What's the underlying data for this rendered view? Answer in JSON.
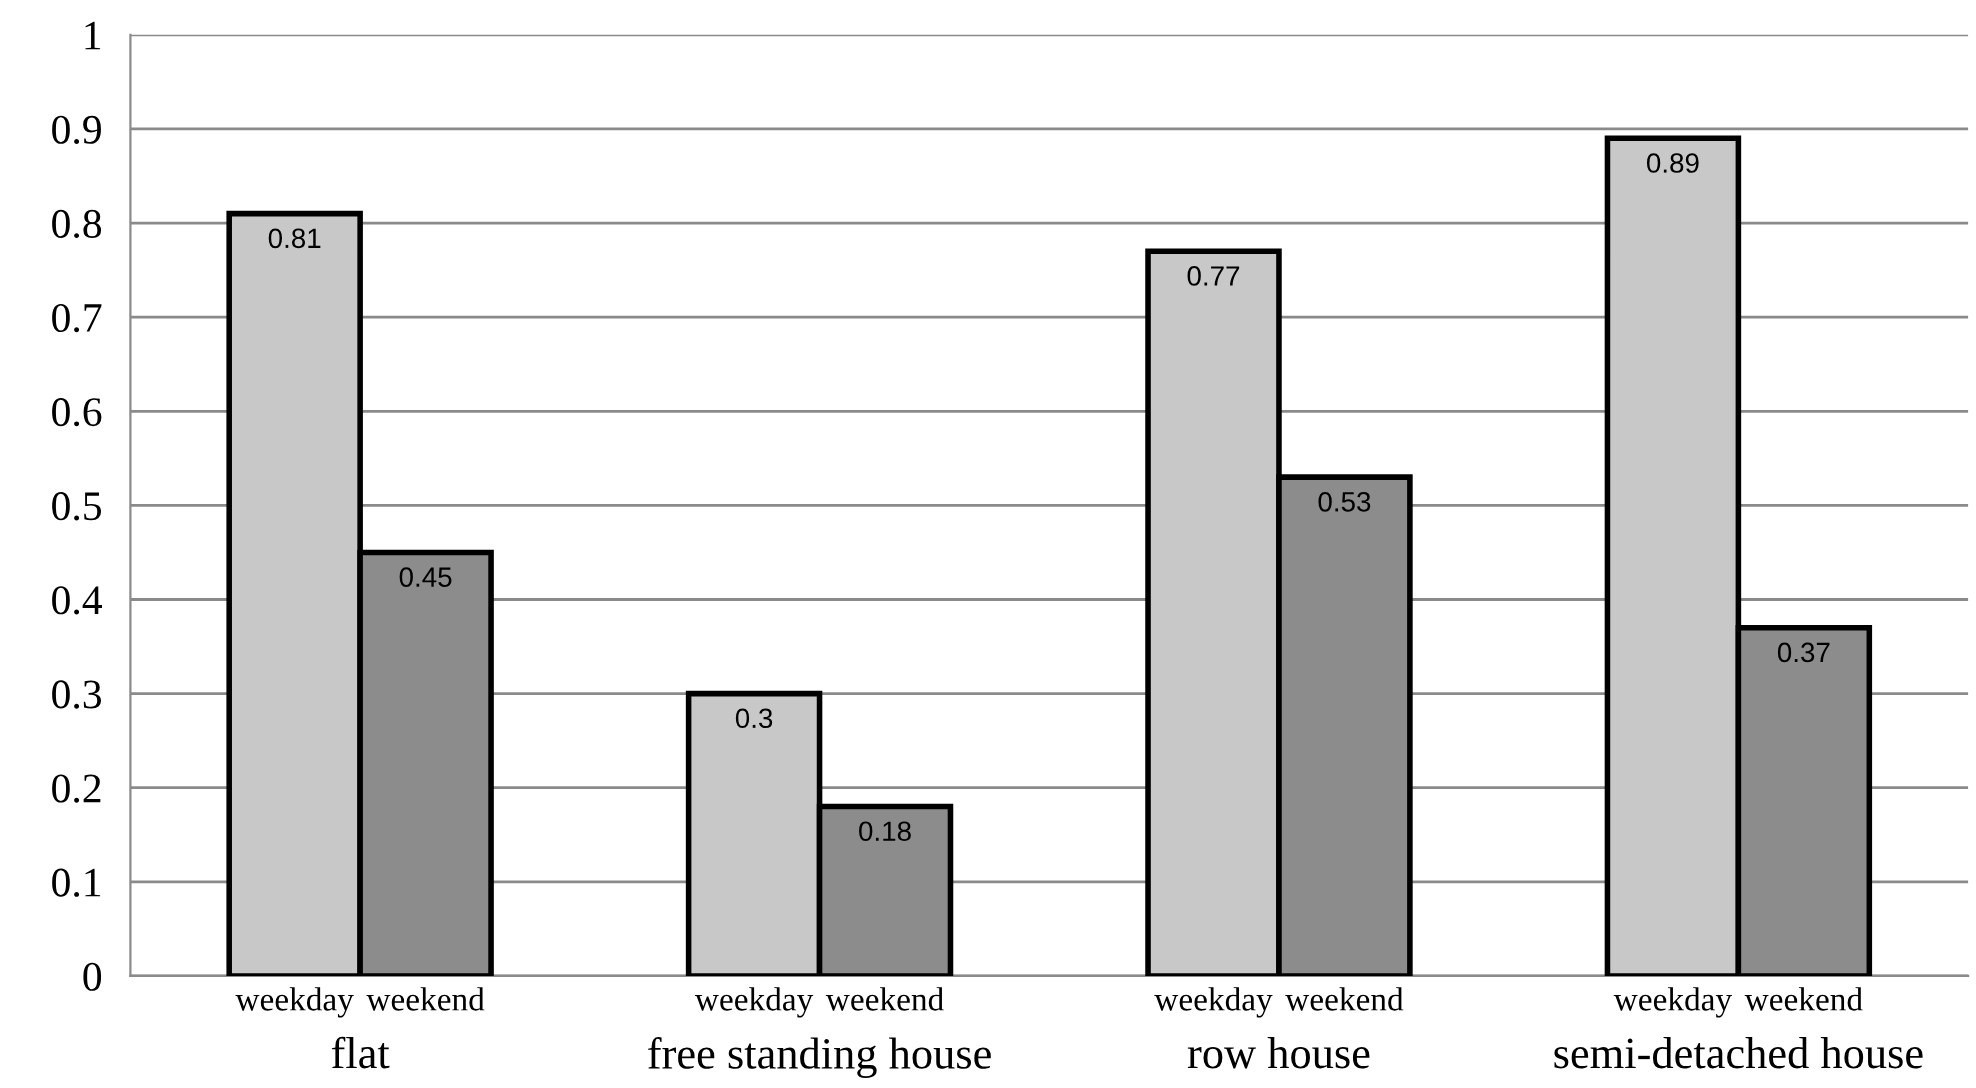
{
  "chart_data": {
    "type": "bar",
    "categories": [
      "flat",
      "free standing house",
      "row house",
      "semi-detached house"
    ],
    "series": [
      {
        "name": "weekday",
        "color": "#c8c8c8",
        "values": [
          0.81,
          0.3,
          0.77,
          0.89
        ]
      },
      {
        "name": "weekend",
        "color": "#8c8c8c",
        "values": [
          0.45,
          0.18,
          0.53,
          0.37
        ]
      }
    ],
    "ylim": [
      0,
      1
    ],
    "yticks": [
      0,
      0.1,
      0.2,
      0.3,
      0.4,
      0.5,
      0.6,
      0.7,
      0.8,
      0.9,
      1
    ],
    "grid": "y",
    "data_labels": true,
    "legend": false
  }
}
